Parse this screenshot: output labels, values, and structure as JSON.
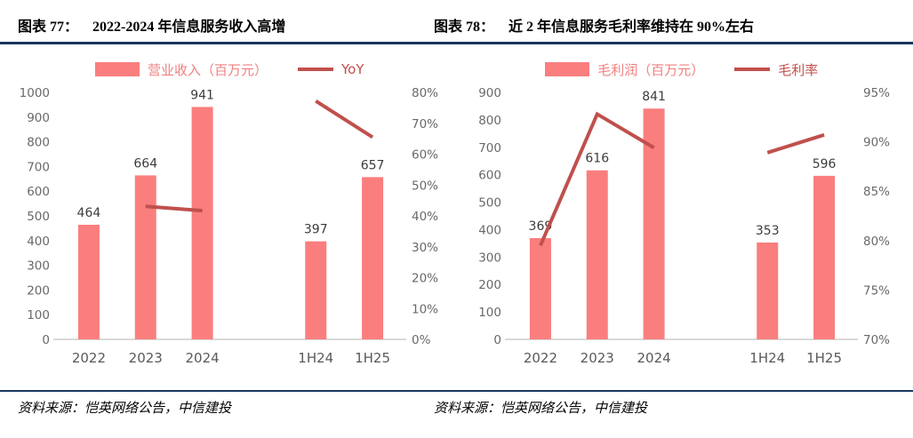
{
  "colors": {
    "bar": "#FA7E7E",
    "line": "#C0504D",
    "navy_rule": "#17375E",
    "tick_text": "#696969",
    "category_text": "#595959",
    "data_label_text": "#3C3C3C",
    "baseline": "#D9D9D9",
    "legend_bar_text": "#F08080",
    "legend_line_text": "#C0504D",
    "background": "#FFFFFF"
  },
  "panels": [
    {
      "figure_label": "图表 77：",
      "figure_title": "2022-2024 年信息服务收入高增",
      "source_label": "资料来源：",
      "source_text": "恺英网络公告，中信建投"
    },
    {
      "figure_label": "图表 78：",
      "figure_title": "近 2 年信息服务毛利率维持在 90%左右",
      "source_label": "资料来源：",
      "source_text": "恺英网络公告，中信建投"
    }
  ],
  "chart_data": [
    {
      "type": "bar",
      "subtype": "bar+line-combo",
      "title": "2022-2024 年信息服务收入高增",
      "categories": [
        "2022",
        "2023",
        "2024",
        "",
        "1H24",
        "1H25"
      ],
      "series": [
        {
          "name": "营业收入（百万元）",
          "kind": "bar",
          "axis": "left",
          "values": [
            464,
            664,
            941,
            null,
            397,
            657
          ]
        },
        {
          "name": "YoY",
          "kind": "line",
          "axis": "right",
          "values": [
            null,
            43.1,
            41.7,
            null,
            77.2,
            65.5
          ]
        }
      ],
      "left_axis": {
        "min": 0,
        "max": 1000,
        "step": 100,
        "suffix": ""
      },
      "right_axis": {
        "min": 0,
        "max": 80,
        "step": 10,
        "suffix": "%"
      },
      "legend_position": "top",
      "grid": false
    },
    {
      "type": "bar",
      "subtype": "bar+line-combo",
      "title": "近 2 年信息服务毛利率维持在 90%左右",
      "categories": [
        "2022",
        "2023",
        "2024",
        "",
        "1H24",
        "1H25"
      ],
      "series": [
        {
          "name": "毛利润（百万元）",
          "kind": "bar",
          "axis": "left",
          "values": [
            369,
            616,
            841,
            null,
            353,
            596
          ]
        },
        {
          "name": "毛利率",
          "kind": "line",
          "axis": "right",
          "values": [
            79.5,
            92.8,
            89.4,
            null,
            88.9,
            90.7
          ]
        }
      ],
      "left_axis": {
        "min": 0,
        "max": 900,
        "step": 100,
        "suffix": ""
      },
      "right_axis": {
        "min": 70,
        "max": 95,
        "step": 5,
        "suffix": "%"
      },
      "legend_position": "top",
      "grid": false
    }
  ]
}
